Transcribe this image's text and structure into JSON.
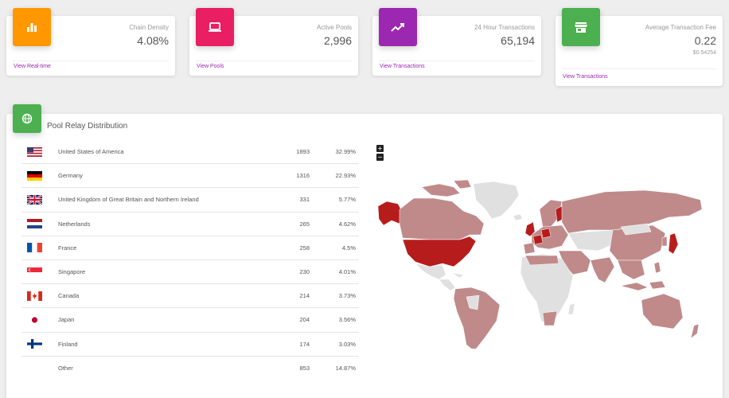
{
  "stats": [
    {
      "title": "Chain Density",
      "value": "4.08%",
      "link": "View Real-time",
      "icon": "bar-chart-icon",
      "color": "#ff9800"
    },
    {
      "title": "Active Pools",
      "value": "2,996",
      "link": "View Pools",
      "icon": "laptop-icon",
      "color": "#e91e63"
    },
    {
      "title": "24 Hour Transactions",
      "value": "65,194",
      "link": "View Transactions",
      "icon": "trending-up-icon",
      "color": "#9c27b0"
    },
    {
      "title": "Average Transaction Fee",
      "value": "0.22",
      "sub": "$0.54254",
      "link": "View Transactions",
      "icon": "store-icon",
      "color": "#4caf50"
    }
  ],
  "relay": {
    "title": "Pool Relay Distribution",
    "icon": "globe-icon",
    "rows": [
      {
        "flag": "us-flag-icon",
        "country": "United States of America",
        "count": "1893",
        "pct": "32.99%"
      },
      {
        "flag": "de-flag-icon",
        "country": "Germany",
        "count": "1316",
        "pct": "22.93%"
      },
      {
        "flag": "gb-flag-icon",
        "country": "United Kingdom of Great Britain and Northern Ireland",
        "count": "331",
        "pct": "5.77%"
      },
      {
        "flag": "nl-flag-icon",
        "country": "Netherlands",
        "count": "265",
        "pct": "4.62%"
      },
      {
        "flag": "fr-flag-icon",
        "country": "France",
        "count": "258",
        "pct": "4.5%"
      },
      {
        "flag": "sg-flag-icon",
        "country": "Singapore",
        "count": "230",
        "pct": "4.01%"
      },
      {
        "flag": "ca-flag-icon",
        "country": "Canada",
        "count": "214",
        "pct": "3.73%"
      },
      {
        "flag": "jp-flag-icon",
        "country": "Japan",
        "count": "204",
        "pct": "3.56%"
      },
      {
        "flag": "fi-flag-icon",
        "country": "Finland",
        "count": "174",
        "pct": "3.03%"
      },
      {
        "flag": "",
        "country": "Other",
        "count": "853",
        "pct": "14.87%"
      }
    ]
  },
  "map": {
    "zoom_in_label": "+",
    "zoom_out_label": "−",
    "colors": {
      "high": "#b71c1c",
      "mid": "#c08a8a",
      "low": "#e0e0e0",
      "none": "#f0f0f0"
    }
  }
}
